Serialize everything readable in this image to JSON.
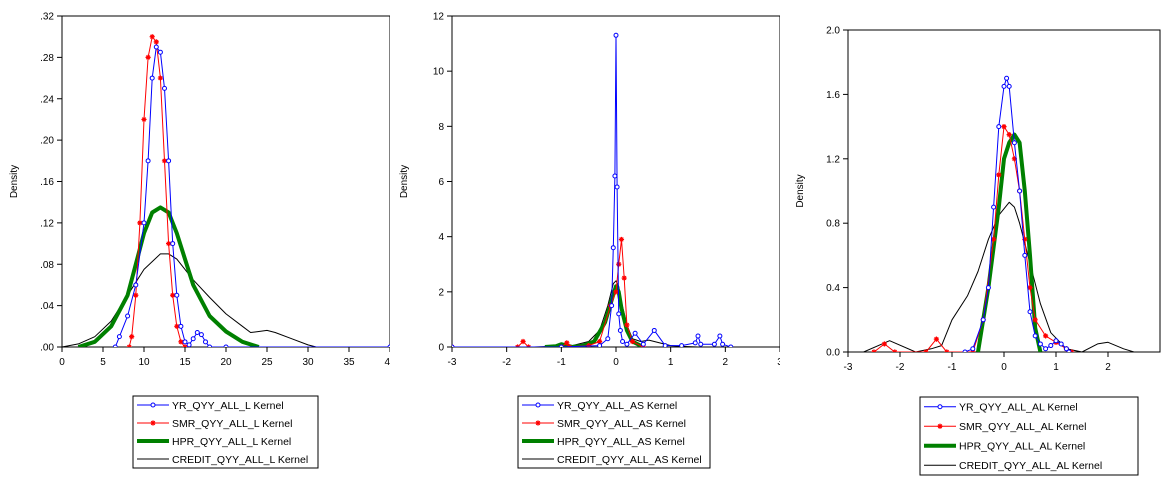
{
  "charts": [
    {
      "ylabel": "Density",
      "xlim": [
        0,
        40
      ],
      "ylim": [
        0,
        0.32
      ],
      "xticks": [
        {
          "v": 0,
          "label": "0"
        },
        {
          "v": 5,
          "label": "5"
        },
        {
          "v": 10,
          "label": "10"
        },
        {
          "v": 15,
          "label": "15"
        },
        {
          "v": 20,
          "label": "20"
        },
        {
          "v": 25,
          "label": "25"
        },
        {
          "v": 30,
          "label": "30"
        },
        {
          "v": 35,
          "label": "35"
        },
        {
          "v": 40,
          "label": "40"
        }
      ],
      "yticks": [
        {
          "v": 0,
          "label": ".00"
        },
        {
          "v": 0.04,
          "label": ".04"
        },
        {
          "v": 0.08,
          "label": ".08"
        },
        {
          "v": 0.12,
          "label": ".12"
        },
        {
          "v": 0.16,
          "label": ".16"
        },
        {
          "v": 0.2,
          "label": ".20"
        },
        {
          "v": 0.24,
          "label": ".24"
        },
        {
          "v": 0.28,
          "label": ".28"
        },
        {
          "v": 0.32,
          "label": ".32"
        }
      ],
      "legend": [
        "YR_QYY_ALL_L Kernel",
        "SMR_QYY_ALL_L Kernel",
        "HPR_QYY_ALL_L Kernel",
        "CREDIT_QYY_ALL_L Kernel"
      ]
    },
    {
      "ylabel": "Density",
      "xlim": [
        -3,
        3
      ],
      "ylim": [
        0,
        12
      ],
      "xticks": [
        {
          "v": -3,
          "label": "-3"
        },
        {
          "v": -2,
          "label": "-2"
        },
        {
          "v": -1,
          "label": "-1"
        },
        {
          "v": 0,
          "label": "0"
        },
        {
          "v": 1,
          "label": "1"
        },
        {
          "v": 2,
          "label": "2"
        },
        {
          "v": 3,
          "label": "3"
        }
      ],
      "yticks": [
        {
          "v": 0,
          "label": "0"
        },
        {
          "v": 2,
          "label": "2"
        },
        {
          "v": 4,
          "label": "4"
        },
        {
          "v": 6,
          "label": "6"
        },
        {
          "v": 8,
          "label": "8"
        },
        {
          "v": 10,
          "label": "10"
        },
        {
          "v": 12,
          "label": "12"
        }
      ],
      "legend": [
        "YR_QYY_ALL_AS Kernel",
        "SMR_QYY_ALL_AS Kernel",
        "HPR_QYY_ALL_AS Kernel",
        "CREDIT_QYY_ALL_AS Kernel"
      ]
    },
    {
      "ylabel": "Density",
      "xlim": [
        -3,
        3
      ],
      "ylim": [
        0,
        2.0
      ],
      "xticks": [
        {
          "v": -3,
          "label": "-3"
        },
        {
          "v": -2,
          "label": "-2"
        },
        {
          "v": -1,
          "label": "-1"
        },
        {
          "v": 0,
          "label": "0"
        },
        {
          "v": 1,
          "label": "1"
        },
        {
          "v": 2,
          "label": "2"
        }
      ],
      "yticks": [
        {
          "v": 0,
          "label": "0.0"
        },
        {
          "v": 0.4,
          "label": "0.4"
        },
        {
          "v": 0.8,
          "label": "0.8"
        },
        {
          "v": 1.2,
          "label": "1.2"
        },
        {
          "v": 1.6,
          "label": "1.6"
        },
        {
          "v": 2.0,
          "label": "2.0"
        }
      ],
      "legend": [
        "YR_QYY_ALL_AL Kernel",
        "SMR_QYY_ALL_AL Kernel",
        "HPR_QYY_ALL_AL Kernel",
        "CREDIT_QYY_ALL_AL Kernel"
      ]
    }
  ],
  "series_style": [
    {
      "color": "#0000ff",
      "marker": "circle",
      "width": 1
    },
    {
      "color": "#ff0000",
      "marker": "star",
      "width": 1
    },
    {
      "color": "#008000",
      "marker": "none",
      "width": 4
    },
    {
      "color": "#000000",
      "marker": "none",
      "width": 1
    }
  ],
  "chart_data": [
    {
      "type": "line",
      "ylabel": "Density",
      "xlim": [
        0,
        40
      ],
      "ylim": [
        0,
        0.32
      ],
      "series": [
        {
          "name": "YR_QYY_ALL_L Kernel",
          "x": [
            6.5,
            7,
            8,
            9,
            10,
            10.5,
            11,
            11.5,
            12,
            12.5,
            13,
            13.5,
            14,
            14.5,
            15,
            15.5,
            16,
            16.5,
            17,
            17.5,
            18,
            20,
            40
          ],
          "values": [
            0,
            0.01,
            0.03,
            0.06,
            0.12,
            0.18,
            0.26,
            0.29,
            0.285,
            0.25,
            0.18,
            0.1,
            0.05,
            0.02,
            0.005,
            0.002,
            0.008,
            0.014,
            0.012,
            0.005,
            0,
            0,
            0
          ]
        },
        {
          "name": "SMR_QYY_ALL_L Kernel",
          "x": [
            8.2,
            8.5,
            9,
            9.5,
            10,
            10.5,
            11,
            11.5,
            12,
            12.5,
            13,
            13.5,
            14,
            14.5,
            15
          ],
          "values": [
            0,
            0.01,
            0.05,
            0.12,
            0.22,
            0.28,
            0.3,
            0.295,
            0.26,
            0.18,
            0.1,
            0.05,
            0.02,
            0.005,
            0
          ]
        },
        {
          "name": "HPR_QYY_ALL_L Kernel",
          "x": [
            2,
            4,
            6,
            8,
            9,
            10,
            11,
            12,
            13,
            14,
            15,
            16,
            18,
            20,
            22,
            24
          ],
          "values": [
            0,
            0.005,
            0.02,
            0.05,
            0.08,
            0.11,
            0.13,
            0.135,
            0.13,
            0.11,
            0.085,
            0.06,
            0.03,
            0.015,
            0.005,
            0
          ]
        },
        {
          "name": "CREDIT_QYY_ALL_L Kernel",
          "x": [
            0,
            2,
            4,
            6,
            8,
            10,
            12,
            13,
            14,
            16,
            18,
            20,
            22,
            23,
            24,
            25,
            26,
            28,
            30,
            31,
            35,
            40
          ],
          "values": [
            0,
            0.003,
            0.01,
            0.025,
            0.05,
            0.075,
            0.09,
            0.09,
            0.085,
            0.065,
            0.048,
            0.032,
            0.02,
            0.014,
            0.015,
            0.016,
            0.014,
            0.008,
            0.002,
            0,
            0,
            0
          ]
        }
      ]
    },
    {
      "type": "line",
      "ylabel": "Density",
      "xlim": [
        -3,
        3
      ],
      "ylim": [
        0,
        12
      ],
      "series": [
        {
          "name": "YR_QYY_ALL_AS Kernel",
          "x": [
            -3,
            -1,
            -0.3,
            -0.15,
            -0.08,
            -0.05,
            -0.02,
            0,
            0.02,
            0.05,
            0.08,
            0.12,
            0.2,
            0.35,
            0.5,
            0.7,
            0.9,
            1.2,
            1.45,
            1.5,
            1.55,
            1.8,
            1.9,
            1.95,
            2.1
          ],
          "values": [
            0,
            0,
            0.05,
            0.3,
            1.5,
            3.6,
            6.2,
            11.3,
            5.8,
            1.2,
            0.6,
            0.2,
            0.1,
            0.5,
            0.1,
            0.6,
            0.05,
            0.05,
            0.15,
            0.4,
            0.1,
            0.1,
            0.4,
            0.1,
            0
          ]
        },
        {
          "name": "SMR_QYY_ALL_AS Kernel",
          "x": [
            -3,
            -1.8,
            -1.7,
            -1.6,
            -1.0,
            -0.9,
            -0.85,
            -0.5,
            -0.3,
            -0.1,
            0,
            0.05,
            0.1,
            0.15,
            0.2,
            0.3,
            0.5
          ],
          "values": [
            0,
            0,
            0.2,
            0,
            0,
            0.15,
            0,
            0.05,
            0.2,
            1.5,
            2.0,
            3.0,
            3.9,
            2.5,
            0.8,
            0.2,
            0
          ]
        },
        {
          "name": "HPR_QYY_ALL_AS Kernel",
          "x": [
            -1.3,
            -1.1,
            -1.0,
            -0.8,
            -0.6,
            -0.4,
            -0.2,
            -0.05,
            0,
            0.05,
            0.1,
            0.2,
            0.3,
            0.5
          ],
          "values": [
            0,
            0.03,
            0.1,
            0,
            0.05,
            0.2,
            0.9,
            1.9,
            2.2,
            2.0,
            1.4,
            0.6,
            0.2,
            0
          ]
        },
        {
          "name": "CREDIT_QYY_ALL_AS Kernel",
          "x": [
            -3,
            -1.5,
            -0.8,
            -0.5,
            -0.3,
            -0.15,
            -0.05,
            0,
            0.05,
            0.1,
            0.2,
            0.3,
            0.45,
            0.6,
            0.8,
            1.0,
            1.2,
            1.5,
            2.0,
            3
          ],
          "values": [
            0,
            0,
            0.05,
            0.2,
            0.6,
            1.5,
            2.3,
            2.4,
            2.2,
            1.6,
            0.8,
            0.3,
            0.2,
            0.25,
            0.15,
            0.05,
            0.02,
            0,
            0,
            0
          ]
        }
      ]
    },
    {
      "type": "line",
      "ylabel": "Density",
      "xlim": [
        -3,
        3
      ],
      "ylim": [
        0,
        2.0
      ],
      "series": [
        {
          "name": "YR_QYY_ALL_AL Kernel",
          "x": [
            -0.75,
            -0.6,
            -0.4,
            -0.3,
            -0.2,
            -0.1,
            0,
            0.05,
            0.1,
            0.2,
            0.3,
            0.4,
            0.5,
            0.6,
            0.7,
            0.8,
            0.9,
            1.0,
            1.1,
            1.2,
            1.25
          ],
          "values": [
            0,
            0.02,
            0.2,
            0.4,
            0.9,
            1.4,
            1.65,
            1.7,
            1.65,
            1.3,
            1.0,
            0.6,
            0.25,
            0.1,
            0.05,
            0.02,
            0.04,
            0.07,
            0.05,
            0.02,
            0
          ]
        },
        {
          "name": "SMR_QYY_ALL_AL Kernel",
          "x": [
            -2.5,
            -2.3,
            -2.1,
            -1.5,
            -1.3,
            -1.1,
            -0.6,
            -0.4,
            -0.2,
            -0.1,
            0,
            0.1,
            0.2,
            0.3,
            0.4,
            0.5,
            0.6,
            0.8,
            1.0,
            1.2,
            1.3
          ],
          "values": [
            0,
            0.05,
            0,
            0,
            0.08,
            0,
            0,
            0.2,
            0.7,
            1.1,
            1.4,
            1.35,
            1.2,
            1.0,
            0.7,
            0.4,
            0.2,
            0.1,
            0.06,
            0.02,
            0
          ]
        },
        {
          "name": "HPR_QYY_ALL_AL Kernel",
          "x": [
            -0.5,
            -0.3,
            -0.1,
            0,
            0.1,
            0.2,
            0.3,
            0.4,
            0.5,
            0.6,
            0.7
          ],
          "values": [
            0,
            0.4,
            0.9,
            1.2,
            1.3,
            1.35,
            1.3,
            1.0,
            0.6,
            0.15,
            0
          ]
        },
        {
          "name": "CREDIT_QYY_ALL_AL Kernel",
          "x": [
            -2.7,
            -2.2,
            -1.7,
            -1.4,
            -1.2,
            -1.0,
            -0.7,
            -0.5,
            -0.3,
            -0.1,
            0.1,
            0.2,
            0.3,
            0.5,
            0.7,
            0.9,
            1.2,
            1.5,
            1.8,
            2.0,
            2.3,
            2.5
          ],
          "values": [
            0,
            0.07,
            0,
            0.02,
            0.04,
            0.2,
            0.35,
            0.5,
            0.7,
            0.85,
            0.93,
            0.9,
            0.8,
            0.55,
            0.3,
            0.12,
            0.02,
            0,
            0.05,
            0.06,
            0.02,
            0
          ]
        }
      ]
    }
  ]
}
